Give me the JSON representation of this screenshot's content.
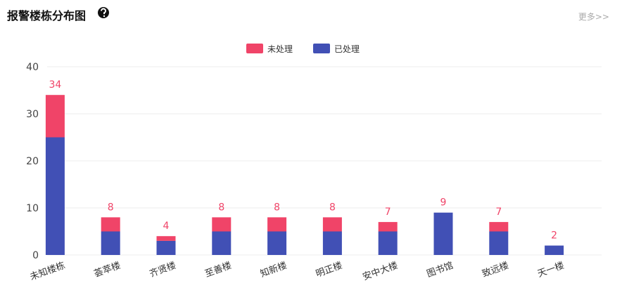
{
  "chart_data": {
    "type": "stacked-bar",
    "title": "报警楼栋分布图",
    "link": "更多>>",
    "categories": [
      "未知楼栋",
      "荟萃楼",
      "齐贤楼",
      "至善楼",
      "知新楼",
      "明正楼",
      "安中大楼",
      "图书馆",
      "致远楼",
      "天一楼"
    ],
    "series": [
      {
        "name": "未处理",
        "color": "#f04468",
        "values": [
          9,
          3,
          1,
          3,
          3,
          3,
          2,
          0,
          2,
          0
        ]
      },
      {
        "name": "已处理",
        "color": "#4150b5",
        "values": [
          25,
          5,
          3,
          5,
          5,
          5,
          5,
          9,
          5,
          2
        ]
      }
    ],
    "totals": [
      34,
      8,
      4,
      8,
      8,
      8,
      7,
      9,
      7,
      2
    ],
    "ylim": [
      0,
      40
    ],
    "yticks": [
      0,
      10,
      20,
      30,
      40
    ],
    "grid": true,
    "legend": "top"
  }
}
